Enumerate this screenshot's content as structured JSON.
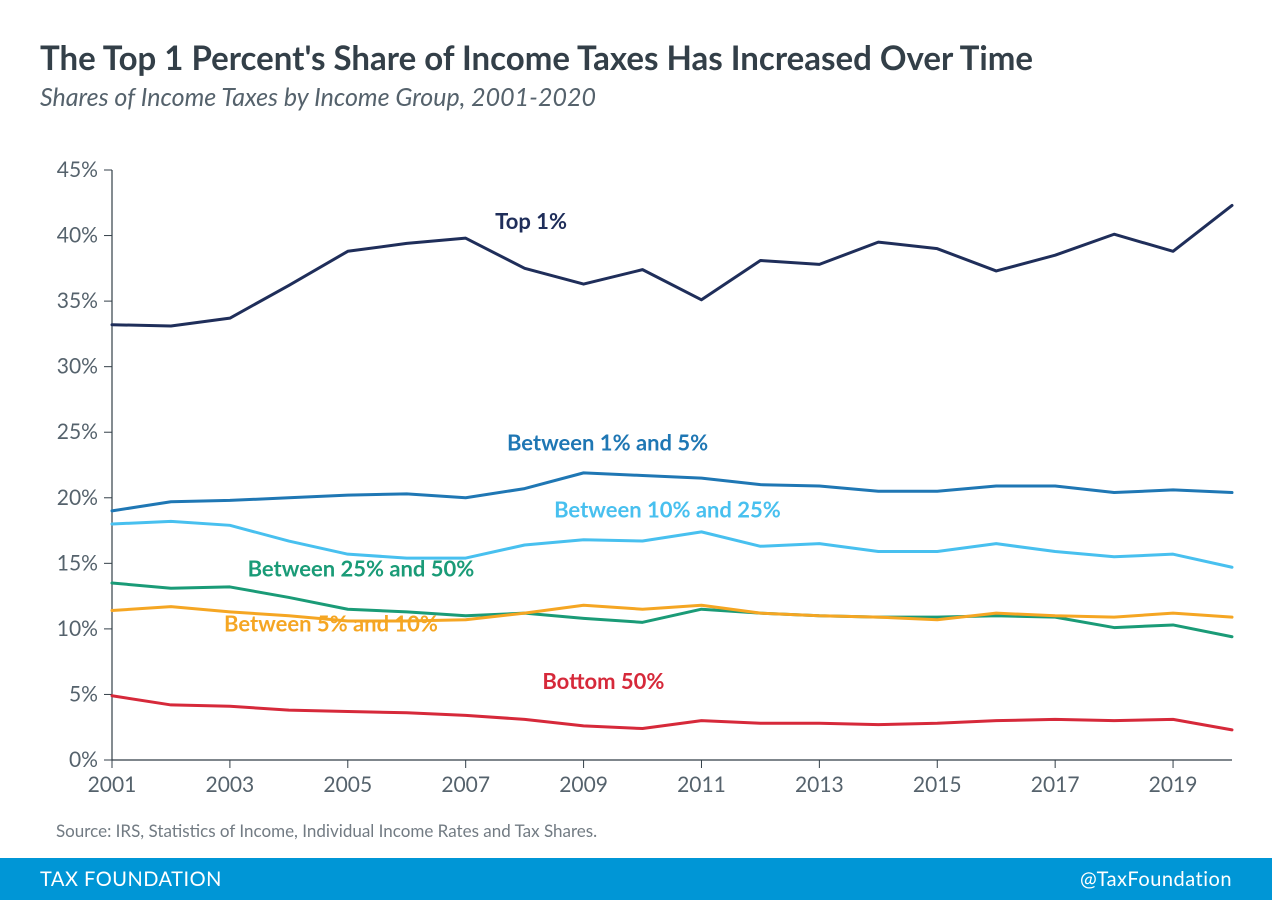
{
  "title": "The Top 1 Percent's Share of Income Taxes Has Increased Over Time",
  "subtitle": "Shares of Income Taxes by Income Group, 2001-2020",
  "source": "Source: IRS, Statistics of Income, Individual Income Rates and Tax Shares.",
  "footer_left": "TAX FOUNDATION",
  "footer_right": "@TaxFoundation",
  "chart": {
    "type": "line",
    "background_color": "#ffffff",
    "axis_color": "#333f48",
    "tick_label_color": "#55626c",
    "tick_label_fontsize": 21,
    "series_label_fontsize": 22,
    "line_width": 3,
    "xlim": [
      2001,
      2020
    ],
    "ylim": [
      0,
      45
    ],
    "ytick_step": 5,
    "y_tick_suffix": "%",
    "x_ticks": [
      2001,
      2003,
      2005,
      2007,
      2009,
      2011,
      2013,
      2015,
      2017,
      2019
    ],
    "years": [
      2001,
      2002,
      2003,
      2004,
      2005,
      2006,
      2007,
      2008,
      2009,
      2010,
      2011,
      2012,
      2013,
      2014,
      2015,
      2016,
      2017,
      2018,
      2019,
      2020
    ],
    "series": [
      {
        "id": "top1",
        "label": "Top 1%",
        "color": "#1f2e5a",
        "label_x": 2007.5,
        "label_y": 40.5,
        "label_anchor": "start",
        "values": [
          33.2,
          33.1,
          33.7,
          36.2,
          38.8,
          39.4,
          39.8,
          37.5,
          36.3,
          37.4,
          35.1,
          38.1,
          37.8,
          39.5,
          39.0,
          37.3,
          38.5,
          40.1,
          38.8,
          42.3
        ]
      },
      {
        "id": "b1to5",
        "label": "Between 1% and 5%",
        "color": "#1f77b4",
        "label_x": 2007.7,
        "label_y": 23.6,
        "label_anchor": "start",
        "values": [
          19.0,
          19.7,
          19.8,
          20.0,
          20.2,
          20.3,
          20.0,
          20.7,
          21.9,
          21.7,
          21.5,
          21.0,
          20.9,
          20.5,
          20.5,
          20.9,
          20.9,
          20.4,
          20.6,
          20.4
        ]
      },
      {
        "id": "b10to25",
        "label": "Between 10% and 25%",
        "color": "#48c0ef",
        "label_x": 2008.5,
        "label_y": 18.5,
        "label_anchor": "start",
        "values": [
          18.0,
          18.2,
          17.9,
          16.7,
          15.7,
          15.4,
          15.4,
          16.4,
          16.8,
          16.7,
          17.4,
          16.3,
          16.5,
          15.9,
          15.9,
          16.5,
          15.9,
          15.5,
          15.7,
          14.7
        ]
      },
      {
        "id": "b25to50",
        "label": "Between 25% and 50%",
        "color": "#1a9b77",
        "label_x": 2003.3,
        "label_y": 14.0,
        "label_anchor": "start",
        "values": [
          13.5,
          13.1,
          13.2,
          12.4,
          11.5,
          11.3,
          11.0,
          11.2,
          10.8,
          10.5,
          11.5,
          11.2,
          11.0,
          10.9,
          10.9,
          11.0,
          10.9,
          10.1,
          10.3,
          9.4
        ]
      },
      {
        "id": "b5to10",
        "label": "Between 5% and 10%",
        "color": "#f5a623",
        "label_x": 2002.9,
        "label_y": 9.8,
        "label_anchor": "start",
        "values": [
          11.4,
          11.7,
          11.3,
          11.0,
          10.6,
          10.6,
          10.7,
          11.2,
          11.8,
          11.5,
          11.8,
          11.2,
          11.0,
          10.9,
          10.7,
          11.2,
          11.0,
          10.9,
          11.2,
          10.9
        ]
      },
      {
        "id": "bottom50",
        "label": "Bottom 50%",
        "color": "#d6293a",
        "label_x": 2008.3,
        "label_y": 5.4,
        "label_anchor": "start",
        "values": [
          4.9,
          4.2,
          4.1,
          3.8,
          3.7,
          3.6,
          3.4,
          3.1,
          2.6,
          2.4,
          3.0,
          2.8,
          2.8,
          2.7,
          2.8,
          3.0,
          3.1,
          3.0,
          3.1,
          2.3
        ]
      }
    ]
  }
}
